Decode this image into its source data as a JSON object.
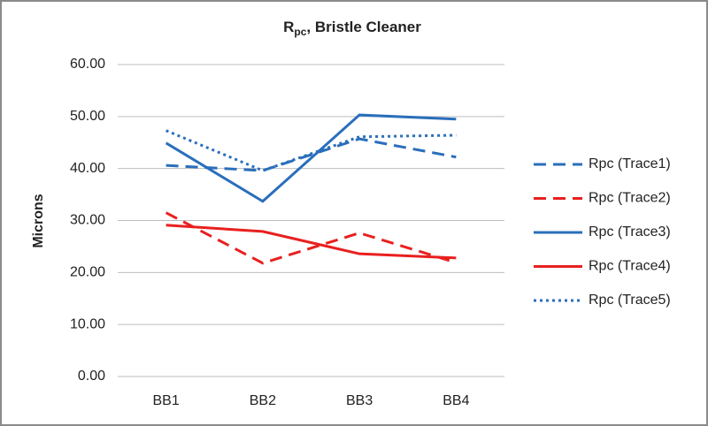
{
  "chart_data": {
    "type": "line",
    "title": {
      "main": "R",
      "subscript": "pc",
      "rest": ", Bristle Cleaner"
    },
    "y_label": "Microns",
    "categories": [
      "BB1",
      "BB2",
      "BB3",
      "BB4"
    ],
    "series": [
      {
        "name": "Rpc (Trace1)",
        "color": "#2a6ebb",
        "dash": "dashed",
        "values": [
          40.6,
          39.6,
          45.7,
          42.2
        ]
      },
      {
        "name": "Rpc (Trace2)",
        "color": "#e8201f",
        "dash": "dashed",
        "values": [
          31.5,
          21.8,
          27.6,
          21.9
        ]
      },
      {
        "name": "Rpc (Trace3)",
        "color": "#2a6ebb",
        "dash": "solid",
        "values": [
          44.9,
          33.7,
          50.3,
          49.5
        ]
      },
      {
        "name": "Rpc (Trace4)",
        "color": "#e8201f",
        "dash": "solid",
        "values": [
          29.1,
          27.9,
          23.6,
          22.8
        ]
      },
      {
        "name": "Rpc (Trace5)",
        "color": "#2a6ebb",
        "dash": "dotted",
        "values": [
          47.3,
          39.6,
          46.1,
          46.4
        ]
      }
    ],
    "ylim": [
      0,
      60
    ],
    "yticks": [
      {
        "value": 0,
        "label": "0.00"
      },
      {
        "value": 10,
        "label": "10.00"
      },
      {
        "value": 20,
        "label": "20.00"
      },
      {
        "value": 30,
        "label": "30.00"
      },
      {
        "value": 40,
        "label": "40.00"
      },
      {
        "value": 50,
        "label": "50.00"
      },
      {
        "value": 60,
        "label": "60.00"
      }
    ],
    "grid": true,
    "legend": "right"
  }
}
